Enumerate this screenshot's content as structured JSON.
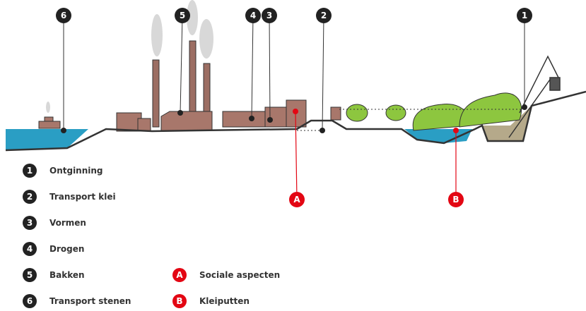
{
  "diagram": {
    "markers": [
      {
        "label": "6"
      },
      {
        "label": "5"
      },
      {
        "label": "4"
      },
      {
        "label": "3"
      },
      {
        "label": "2"
      },
      {
        "label": "1"
      },
      {
        "label": "A"
      },
      {
        "label": "B"
      }
    ],
    "legend": [
      {
        "key": "1",
        "label": "Ontginning"
      },
      {
        "key": "2",
        "label": "Transport klei"
      },
      {
        "key": "3",
        "label": "Vormen"
      },
      {
        "key": "4",
        "label": "Drogen"
      },
      {
        "key": "5",
        "label": "Bakken"
      },
      {
        "key": "6",
        "label": "Transport stenen"
      }
    ],
    "aspects": [
      {
        "key": "A",
        "label": "Sociale aspecten"
      },
      {
        "key": "B",
        "label": "Kleiputten"
      }
    ]
  }
}
